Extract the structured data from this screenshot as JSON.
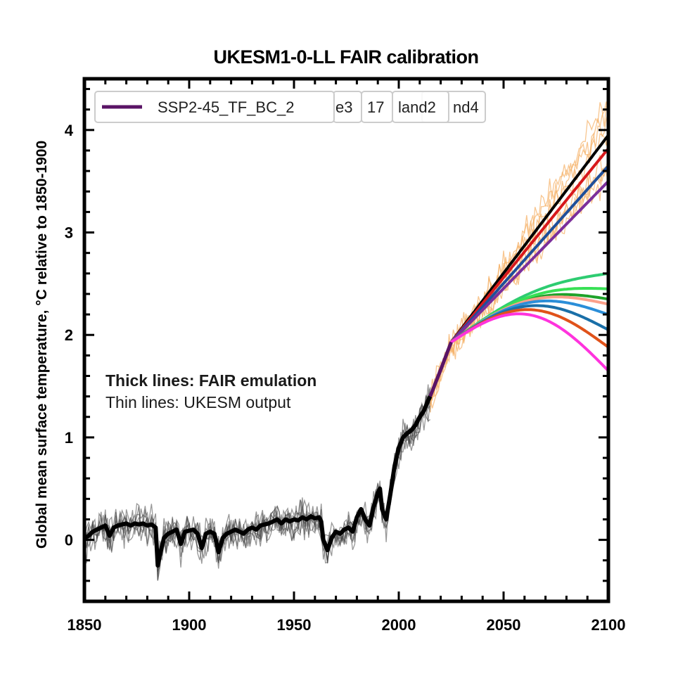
{
  "chart_data": {
    "type": "line",
    "title": "UKESM1-0-LL FAIR calibration",
    "xlabel": "",
    "ylabel": "Global mean surface temperature, °C relative to 1850-1900",
    "xlim": [
      1850,
      2100
    ],
    "ylim": [
      -0.6,
      4.5
    ],
    "x_ticks": [
      "1850",
      "1900",
      "1950",
      "2000",
      "2050",
      "2100"
    ],
    "y_ticks": [
      "0",
      "1",
      "2",
      "3",
      "4"
    ],
    "grid": false,
    "legend_entries": [
      "SSP2-45_TF_BC_2",
      "e3",
      "17",
      "land2",
      "nd4"
    ],
    "legend_color": "#5a1466",
    "annotations": [
      "Thick lines: FAIR emulation",
      "Thin lines: UKESM output"
    ],
    "historical_fair": {
      "color": "#000000",
      "x": [
        1850,
        1852,
        1854,
        1856,
        1858,
        1860,
        1862,
        1864,
        1866,
        1868,
        1870,
        1872,
        1874,
        1876,
        1878,
        1880,
        1882,
        1884,
        1885,
        1886,
        1888,
        1890,
        1892,
        1894,
        1896,
        1898,
        1900,
        1902,
        1904,
        1906,
        1908,
        1910,
        1912,
        1914,
        1916,
        1918,
        1920,
        1922,
        1924,
        1926,
        1928,
        1930,
        1932,
        1934,
        1936,
        1938,
        1940,
        1942,
        1944,
        1946,
        1948,
        1950,
        1952,
        1954,
        1956,
        1958,
        1960,
        1962,
        1963,
        1964,
        1966,
        1968,
        1970,
        1972,
        1974,
        1976,
        1978,
        1980,
        1982,
        1984,
        1986,
        1988,
        1990,
        1991,
        1992,
        1994,
        1996,
        1998,
        2000,
        2002,
        2004,
        2006,
        2008,
        2010,
        2012,
        2014,
        2015
      ],
      "y": [
        0.02,
        0.04,
        0.08,
        0.1,
        0.12,
        0.14,
        0.04,
        0.12,
        0.14,
        0.15,
        0.16,
        0.14,
        0.16,
        0.15,
        0.16,
        0.14,
        0.15,
        0.12,
        -0.25,
        -0.15,
        0.02,
        0.06,
        0.08,
        0.1,
        -0.04,
        0.08,
        0.09,
        0.1,
        0.06,
        -0.08,
        0.06,
        0.08,
        0.06,
        -0.12,
        0.02,
        0.06,
        0.08,
        0.1,
        0.08,
        0.06,
        0.1,
        0.12,
        0.1,
        0.14,
        0.15,
        0.16,
        0.18,
        0.2,
        0.16,
        0.2,
        0.18,
        0.2,
        0.19,
        0.22,
        0.2,
        0.23,
        0.21,
        0.22,
        0.18,
        0.0,
        -0.1,
        0.02,
        0.08,
        0.06,
        0.1,
        0.12,
        0.08,
        0.22,
        0.3,
        0.2,
        0.14,
        0.32,
        0.46,
        0.5,
        0.3,
        0.2,
        0.45,
        0.72,
        0.9,
        1.0,
        1.04,
        1.07,
        1.12,
        1.2,
        1.26,
        1.36,
        1.4
      ]
    },
    "ssp_fair_series": [
      {
        "color": "#000000",
        "y2100": 3.95
      },
      {
        "color": "#d7191c",
        "y2100": 3.82
      },
      {
        "color": "#1f4f99",
        "y2100": 3.65
      },
      {
        "color": "#7b2f9b",
        "y2100": 3.5
      },
      {
        "color": "#2ecc71",
        "y2100": 2.6
      },
      {
        "color": "#1fa22a",
        "y2100": 2.35
      },
      {
        "color": "#38e055",
        "y2100": 2.45
      },
      {
        "color": "#fca08a",
        "y2100": 2.3
      },
      {
        "color": "#2b8ed8",
        "y2100": 2.2
      },
      {
        "color": "#1a6fa8",
        "y2100": 2.05
      },
      {
        "color": "#e0521a",
        "y2100": 1.88
      },
      {
        "color": "#ff33dd",
        "y2100": 1.65
      }
    ],
    "ukesm_historical_color": "#444444",
    "ukesm_ssp_color": "#f5b36b"
  }
}
